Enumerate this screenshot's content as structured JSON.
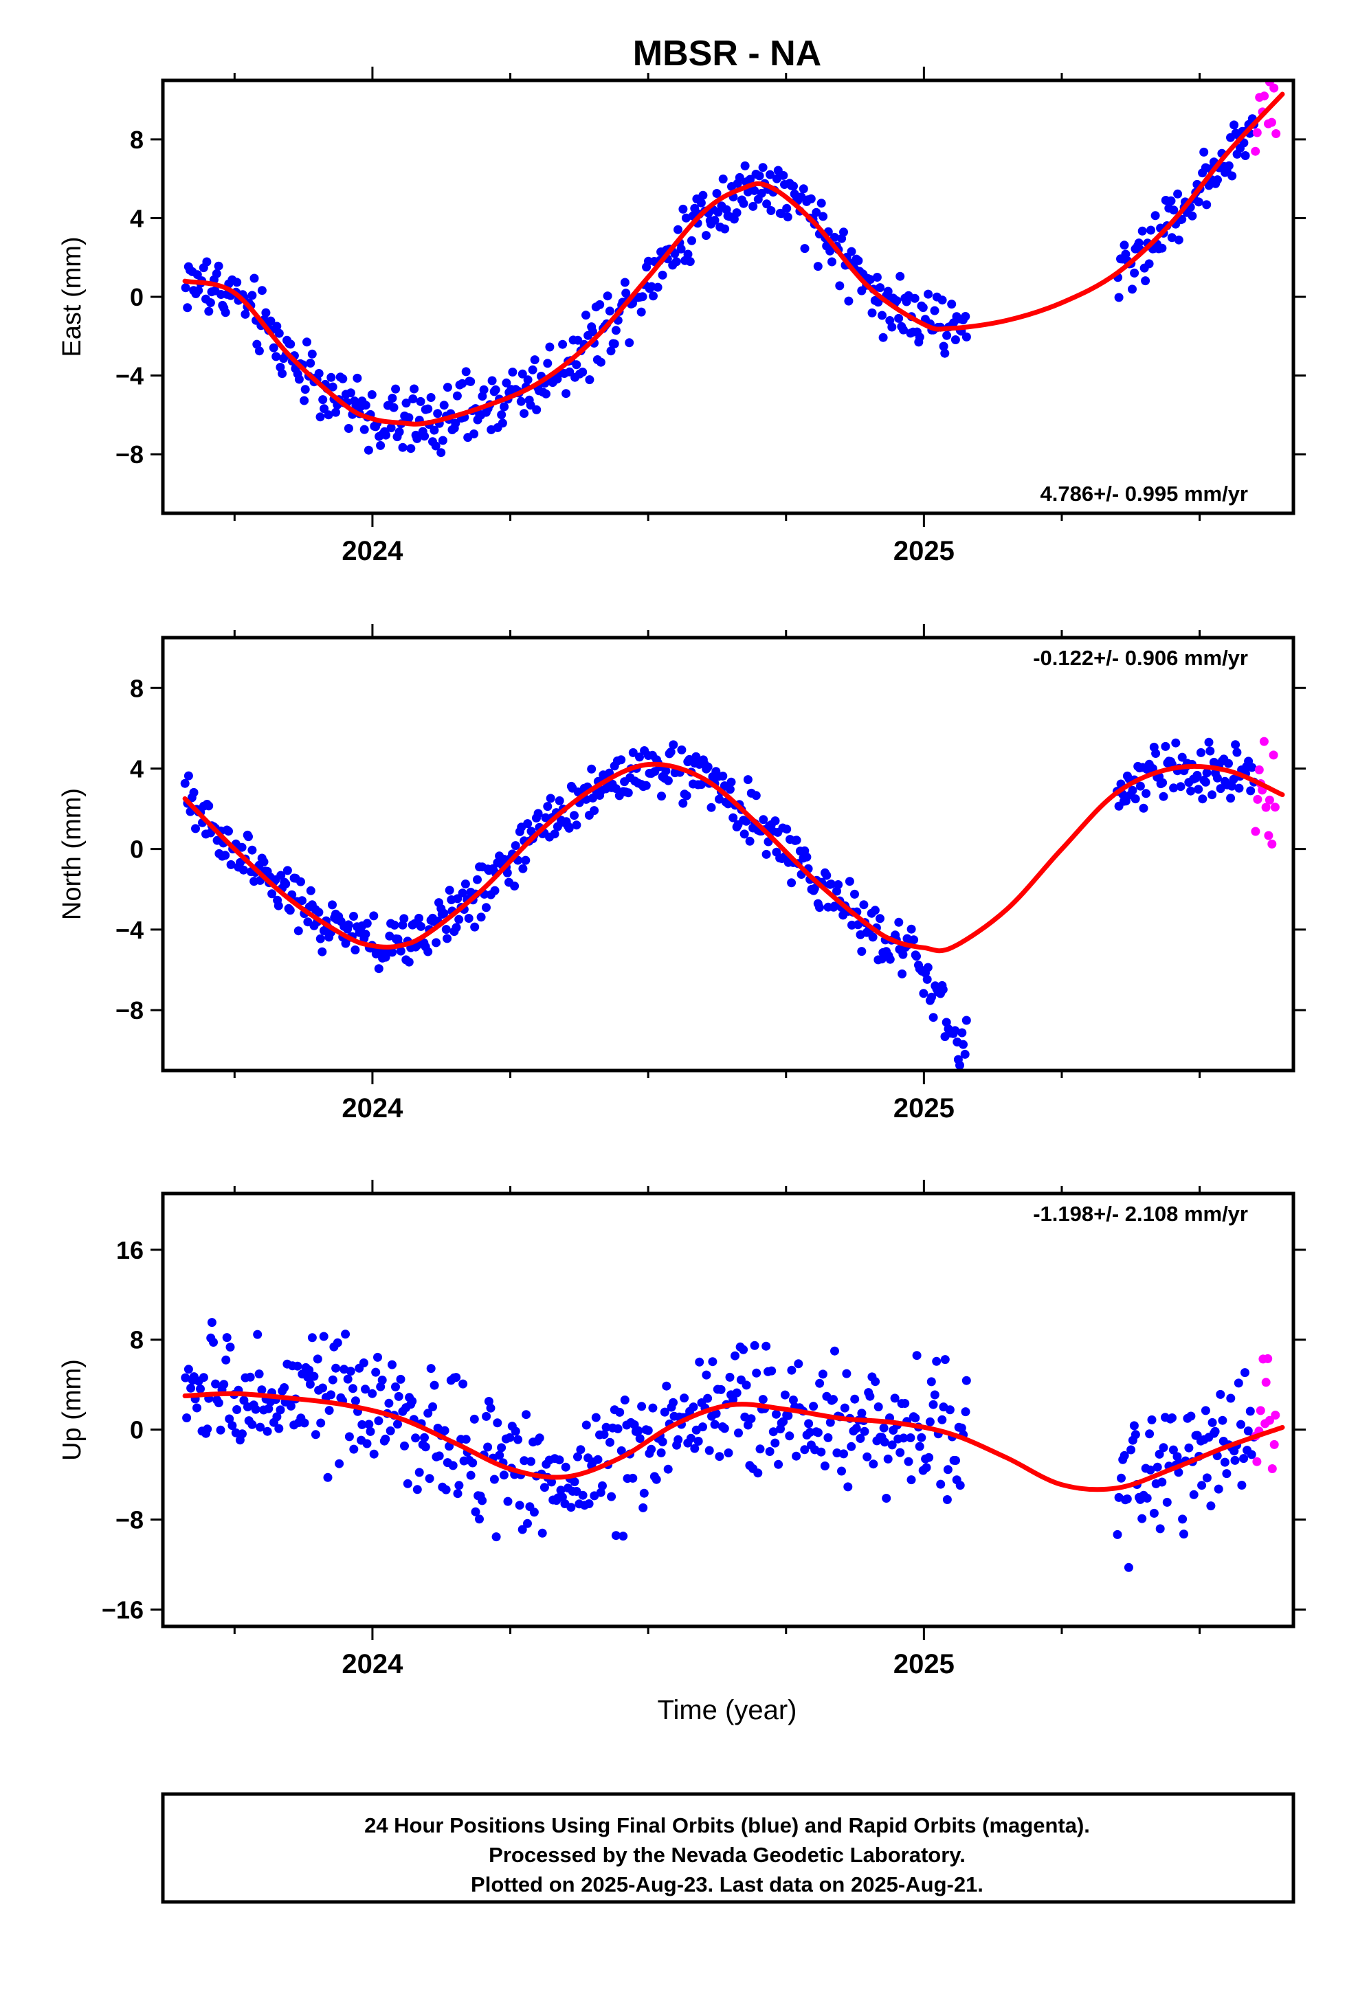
{
  "title": "MBSR - NA",
  "xlabel": "Time (year)",
  "footer": {
    "line1": "24 Hour Positions Using Final Orbits (blue) and Rapid Orbits (magenta).",
    "line2": "Processed by the Nevada Geodetic Laboratory.",
    "line3": "Plotted on 2025-Aug-23. Last data on 2025-Aug-21."
  },
  "colors": {
    "final": "#0000ff",
    "rapid": "#ff00ff",
    "model": "#ff0000",
    "axis": "#000000"
  },
  "chart_data": [
    {
      "type": "scatter",
      "ylabel": "East (mm)",
      "velocity": "4.786+/- 0.995 mm/yr",
      "velocity_position": "bottom-right",
      "xlim": [
        2023.62,
        2025.67
      ],
      "ylim": [
        -11,
        11
      ],
      "xticks": [
        "2024",
        "2025"
      ],
      "yticks": [
        "-8",
        "-4",
        "0",
        "4",
        "8"
      ],
      "model": {
        "x": [
          2023.66,
          2023.75,
          2023.85,
          2023.95,
          2024.0,
          2024.05,
          2024.1,
          2024.2,
          2024.3,
          2024.4,
          2024.5,
          2024.6,
          2024.67,
          2024.72,
          2024.8,
          2024.9,
          2025.0,
          2025.05,
          2025.15,
          2025.25,
          2025.35,
          2025.45,
          2025.55,
          2025.65
        ],
        "y": [
          0.8,
          0.2,
          -3.0,
          -5.5,
          -6.2,
          -6.4,
          -6.4,
          -5.6,
          -4.4,
          -2.2,
          1.0,
          4.3,
          5.5,
          5.6,
          3.8,
          0.5,
          -1.4,
          -1.6,
          -1.2,
          -0.3,
          1.2,
          3.8,
          7.3,
          10.3
        ]
      },
      "series": [
        {
          "name": "Final Orbits (blue)",
          "x_start": 2023.66,
          "x_end": 2025.08,
          "noise": 1.2
        },
        {
          "name": "Final Orbits (blue)",
          "x_start": 2025.35,
          "x_end": 2025.6,
          "noise": 1.1
        },
        {
          "name": "Rapid Orbits (magenta)",
          "x_start": 2025.6,
          "x_end": 2025.64,
          "noise": 1.8
        }
      ]
    },
    {
      "type": "scatter",
      "ylabel": "North (mm)",
      "velocity": "-0.122+/- 0.906 mm/yr",
      "velocity_position": "top-right",
      "xlim": [
        2023.62,
        2025.67
      ],
      "ylim": [
        -11,
        10.5
      ],
      "xticks": [
        "2024",
        "2025"
      ],
      "yticks": [
        "-8",
        "-4",
        "0",
        "4",
        "8"
      ],
      "model": {
        "x": [
          2023.66,
          2023.75,
          2023.85,
          2023.95,
          2024.0,
          2024.05,
          2024.1,
          2024.2,
          2024.3,
          2024.4,
          2024.5,
          2024.6,
          2024.7,
          2024.8,
          2024.9,
          2024.95,
          2025.0,
          2025.05,
          2025.15,
          2025.25,
          2025.35,
          2025.45,
          2025.55,
          2025.65
        ],
        "y": [
          2.5,
          0.0,
          -2.5,
          -4.3,
          -4.8,
          -4.8,
          -4.2,
          -2.0,
          0.8,
          3.0,
          4.2,
          3.5,
          1.2,
          -1.5,
          -3.8,
          -4.6,
          -4.9,
          -4.9,
          -3.0,
          0.0,
          2.8,
          4.0,
          3.9,
          2.7
        ]
      },
      "series": [
        {
          "name": "Final Orbits (blue)",
          "x_start": 2023.66,
          "x_end": 2024.98,
          "noise": 1.0
        },
        {
          "name": "Final Orbits (blue)",
          "x_start": 2024.98,
          "x_end": 2025.08,
          "noise": 0.9,
          "offset": [
            -5.5,
            -10.3
          ]
        },
        {
          "name": "Final Orbits (blue)",
          "x_start": 2025.35,
          "x_end": 2025.6,
          "noise": 1.0
        },
        {
          "name": "Rapid Orbits (magenta)",
          "x_start": 2025.6,
          "x_end": 2025.64,
          "noise": 2.2
        }
      ]
    },
    {
      "type": "scatter",
      "ylabel": "Up (mm)",
      "velocity": "-1.198+/- 2.108 mm/yr",
      "velocity_position": "top-right",
      "xlim": [
        2023.62,
        2025.67
      ],
      "ylim": [
        -17.5,
        21
      ],
      "xticks": [
        "2024",
        "2025"
      ],
      "yticks": [
        "-16",
        "-8",
        "0",
        "8",
        "16"
      ],
      "model": {
        "x": [
          2023.66,
          2023.75,
          2023.85,
          2023.95,
          2024.05,
          2024.15,
          2024.25,
          2024.35,
          2024.45,
          2024.55,
          2024.65,
          2024.75,
          2024.85,
          2024.95,
          2025.05,
          2025.15,
          2025.25,
          2025.35,
          2025.45,
          2025.55,
          2025.65
        ],
        "y": [
          3.0,
          3.2,
          2.8,
          2.2,
          1.0,
          -1.2,
          -3.5,
          -4.2,
          -2.5,
          0.5,
          2.2,
          1.8,
          1.0,
          0.6,
          -0.4,
          -2.5,
          -4.9,
          -5.2,
          -3.5,
          -1.5,
          0.2
        ]
      },
      "series": [
        {
          "name": "Final Orbits (blue)",
          "x_start": 2023.66,
          "x_end": 2025.08,
          "noise": 4.0
        },
        {
          "name": "Final Orbits (blue)",
          "x_start": 2025.35,
          "x_end": 2025.6,
          "noise": 4.0
        },
        {
          "name": "Rapid Orbits (magenta)",
          "x_start": 2025.6,
          "x_end": 2025.64,
          "noise": 6.0
        }
      ]
    }
  ]
}
